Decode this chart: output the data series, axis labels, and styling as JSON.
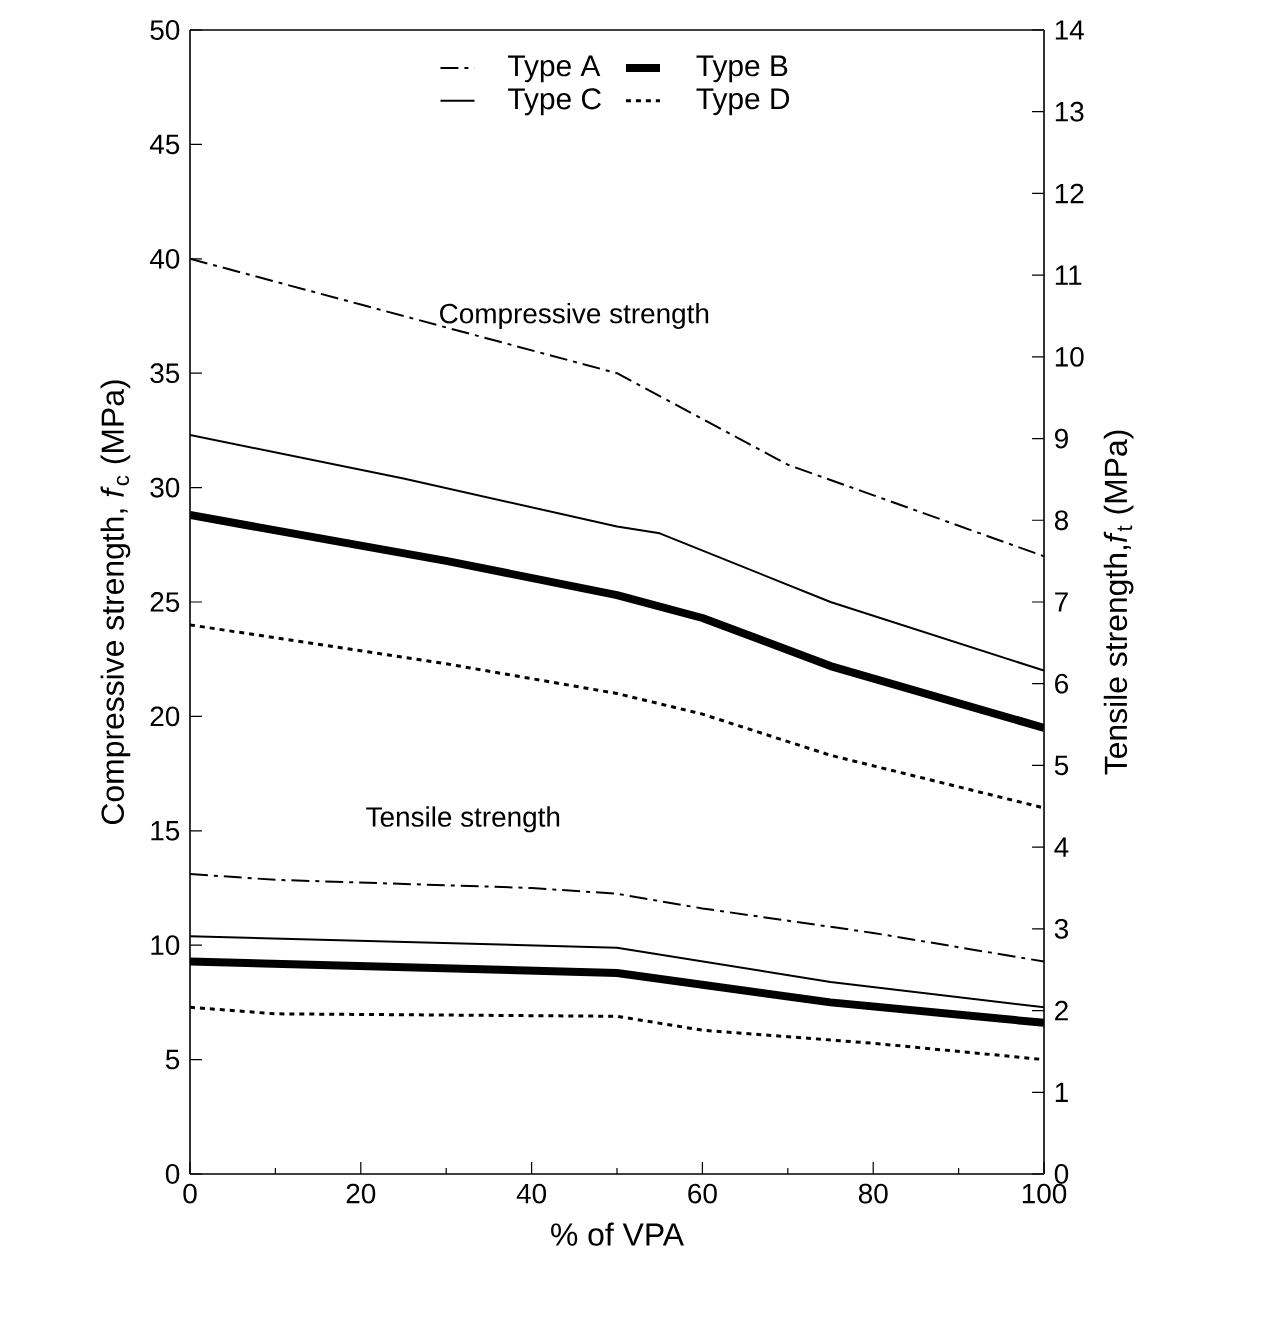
{
  "chart_data": {
    "type": "line",
    "xlabel": "% of VPA",
    "ylabel": "Compressive strength, *f*$_{c}$ (MPa)",
    "y2label": "Tensile strength,*f*$_{t}$ (MPa)",
    "xlim": [
      0,
      100
    ],
    "xticks": [
      0,
      20,
      40,
      60,
      80,
      100
    ],
    "ylim": [
      0,
      50
    ],
    "yticks": [
      0,
      5,
      10,
      15,
      20,
      25,
      30,
      35,
      40,
      45,
      50
    ],
    "y2lim": [
      0,
      14
    ],
    "y2ticks": [
      0,
      1,
      2,
      3,
      4,
      5,
      6,
      7,
      8,
      9,
      10,
      11,
      12,
      13,
      14
    ],
    "grid": false,
    "legend": "top",
    "marker": "none",
    "annotations": [
      "Compressive strength",
      "Tensile strength"
    ],
    "series": [
      {
        "name": "Type A",
        "color": "#000000",
        "line_style": "dashdot",
        "x": [
          0,
          20,
          50,
          55,
          70,
          100
        ],
        "values": [
          40,
          38,
          35,
          34,
          31,
          27
        ]
      },
      {
        "name": "Type B",
        "color": "#000000",
        "line_style": "solid",
        "x": [
          0,
          30,
          50,
          60,
          75,
          100
        ],
        "values": [
          28.8,
          26.8,
          25.3,
          24.3,
          22.2,
          19.5
        ]
      },
      {
        "name": "Type C",
        "color": "#000000",
        "line_style": "solid",
        "x": [
          0,
          25,
          50,
          55,
          65,
          75,
          100
        ],
        "values": [
          32.3,
          30.4,
          28.3,
          28,
          26.5,
          25,
          22
        ]
      },
      {
        "name": "Type D",
        "color": "#000000",
        "line_style": "dotted",
        "x": [
          0,
          30,
          50,
          60,
          75,
          100
        ],
        "values": [
          24,
          22.3,
          21,
          20.1,
          18.3,
          16
        ]
      },
      {
        "axis": "y2",
        "color": "#000000",
        "line_style": "dashdot",
        "x": [
          0,
          10,
          40,
          50,
          60,
          80,
          100
        ],
        "values": [
          3.67,
          3.6,
          3.5,
          3.43,
          3.25,
          2.95,
          2.6
        ]
      },
      {
        "axis": "y2",
        "color": "#000000",
        "line_style": "solid",
        "x": [
          0,
          50,
          75,
          100
        ],
        "values": [
          2.6,
          2.46,
          2.1,
          1.85
        ]
      },
      {
        "axis": "y2",
        "color": "#000000",
        "line_style": "solid",
        "x": [
          0,
          50,
          75,
          100
        ],
        "values": [
          2.91,
          2.77,
          2.35,
          2.04
        ]
      },
      {
        "axis": "y2",
        "color": "#000000",
        "line_style": "dotted",
        "x": [
          0,
          10,
          50,
          60,
          80,
          100
        ],
        "values": [
          2.04,
          1.96,
          1.93,
          1.76,
          1.6,
          1.4
        ]
      }
    ]
  }
}
